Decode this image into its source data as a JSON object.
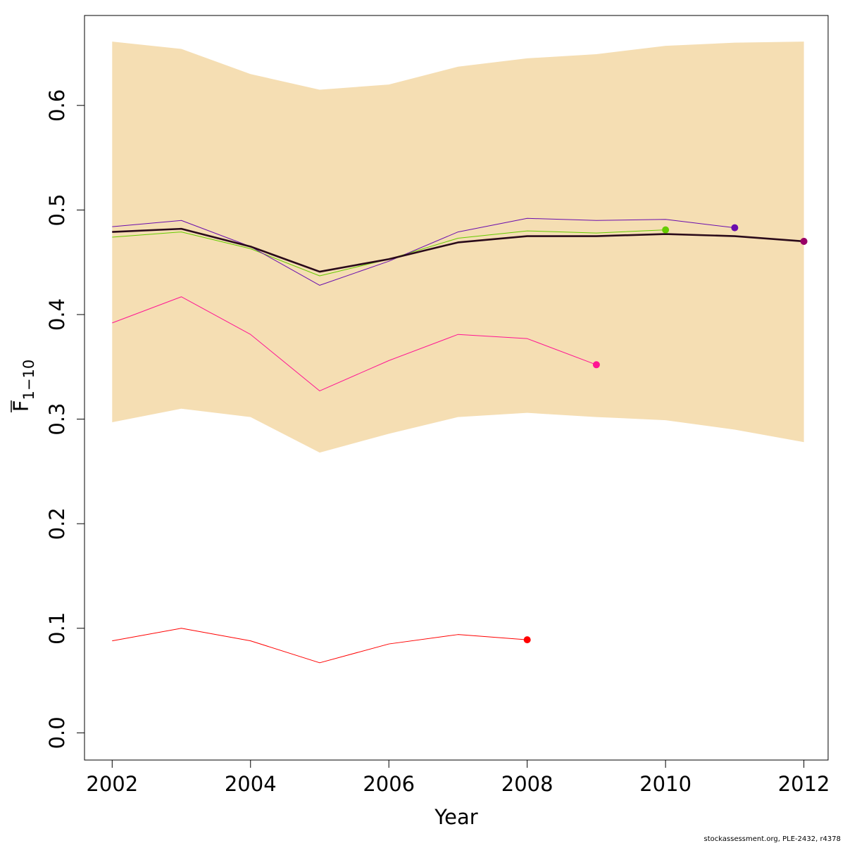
{
  "chart_data": {
    "type": "line",
    "title": "",
    "xlabel": "Year",
    "ylabel_main": "F",
    "ylabel_subscript": "1−10",
    "xlim": [
      2001.6,
      2012.35
    ],
    "ylim": [
      -0.026,
      0.686
    ],
    "x_ticks": [
      2002,
      2004,
      2006,
      2008,
      2010,
      2012
    ],
    "y_ticks": [
      0.0,
      0.1,
      0.2,
      0.3,
      0.4,
      0.5,
      0.6
    ],
    "y_tick_labels": [
      "0.0",
      "0.1",
      "0.2",
      "0.3",
      "0.4",
      "0.5",
      "0.6"
    ],
    "grid": false,
    "band": {
      "color": "#f5deb3",
      "x": [
        2002,
        2003,
        2004,
        2005,
        2006,
        2007,
        2008,
        2009,
        2010,
        2011,
        2012
      ],
      "upper": [
        0.661,
        0.654,
        0.63,
        0.615,
        0.62,
        0.637,
        0.645,
        0.649,
        0.657,
        0.66,
        0.661
      ],
      "lower": [
        0.297,
        0.31,
        0.302,
        0.268,
        0.286,
        0.302,
        0.306,
        0.302,
        0.299,
        0.29,
        0.278
      ]
    },
    "series": [
      {
        "color": "#ff0000",
        "x": [
          2002,
          2003,
          2004,
          2005,
          2006,
          2007,
          2008
        ],
        "values": [
          0.088,
          0.1,
          0.088,
          0.067,
          0.085,
          0.094,
          0.089
        ]
      },
      {
        "color": "#ff1493",
        "x": [
          2002,
          2003,
          2004,
          2005,
          2006,
          2007,
          2008,
          2009
        ],
        "values": [
          0.392,
          0.417,
          0.381,
          0.327,
          0.356,
          0.381,
          0.377,
          0.352
        ]
      },
      {
        "color": "#66cc00",
        "x": [
          2002,
          2003,
          2004,
          2005,
          2006,
          2007,
          2008,
          2009,
          2010
        ],
        "values": [
          0.474,
          0.479,
          0.463,
          0.437,
          0.453,
          0.473,
          0.48,
          0.478,
          0.481
        ]
      },
      {
        "color": "#6a0dad",
        "x": [
          2002,
          2003,
          2004,
          2005,
          2006,
          2007,
          2008,
          2009,
          2010,
          2011
        ],
        "values": [
          0.484,
          0.49,
          0.465,
          0.428,
          0.451,
          0.479,
          0.492,
          0.49,
          0.491,
          0.483
        ]
      },
      {
        "color": "#990066",
        "x": [
          2002,
          2003,
          2004,
          2005,
          2006,
          2007,
          2008,
          2009,
          2010,
          2011,
          2012
        ],
        "values": [
          0.479,
          0.482,
          0.465,
          0.441,
          0.453,
          0.469,
          0.475,
          0.475,
          0.477,
          0.475,
          0.47
        ]
      },
      {
        "color": "#2a0a1a",
        "bold": true,
        "x": [
          2002,
          2003,
          2004,
          2005,
          2006,
          2007,
          2008,
          2009,
          2010,
          2011,
          2012
        ],
        "values": [
          0.479,
          0.482,
          0.465,
          0.441,
          0.453,
          0.469,
          0.475,
          0.475,
          0.477,
          0.475,
          0.47
        ]
      }
    ]
  },
  "footer": {
    "text": "stockassessment.org, PLE-2432, r4378"
  }
}
